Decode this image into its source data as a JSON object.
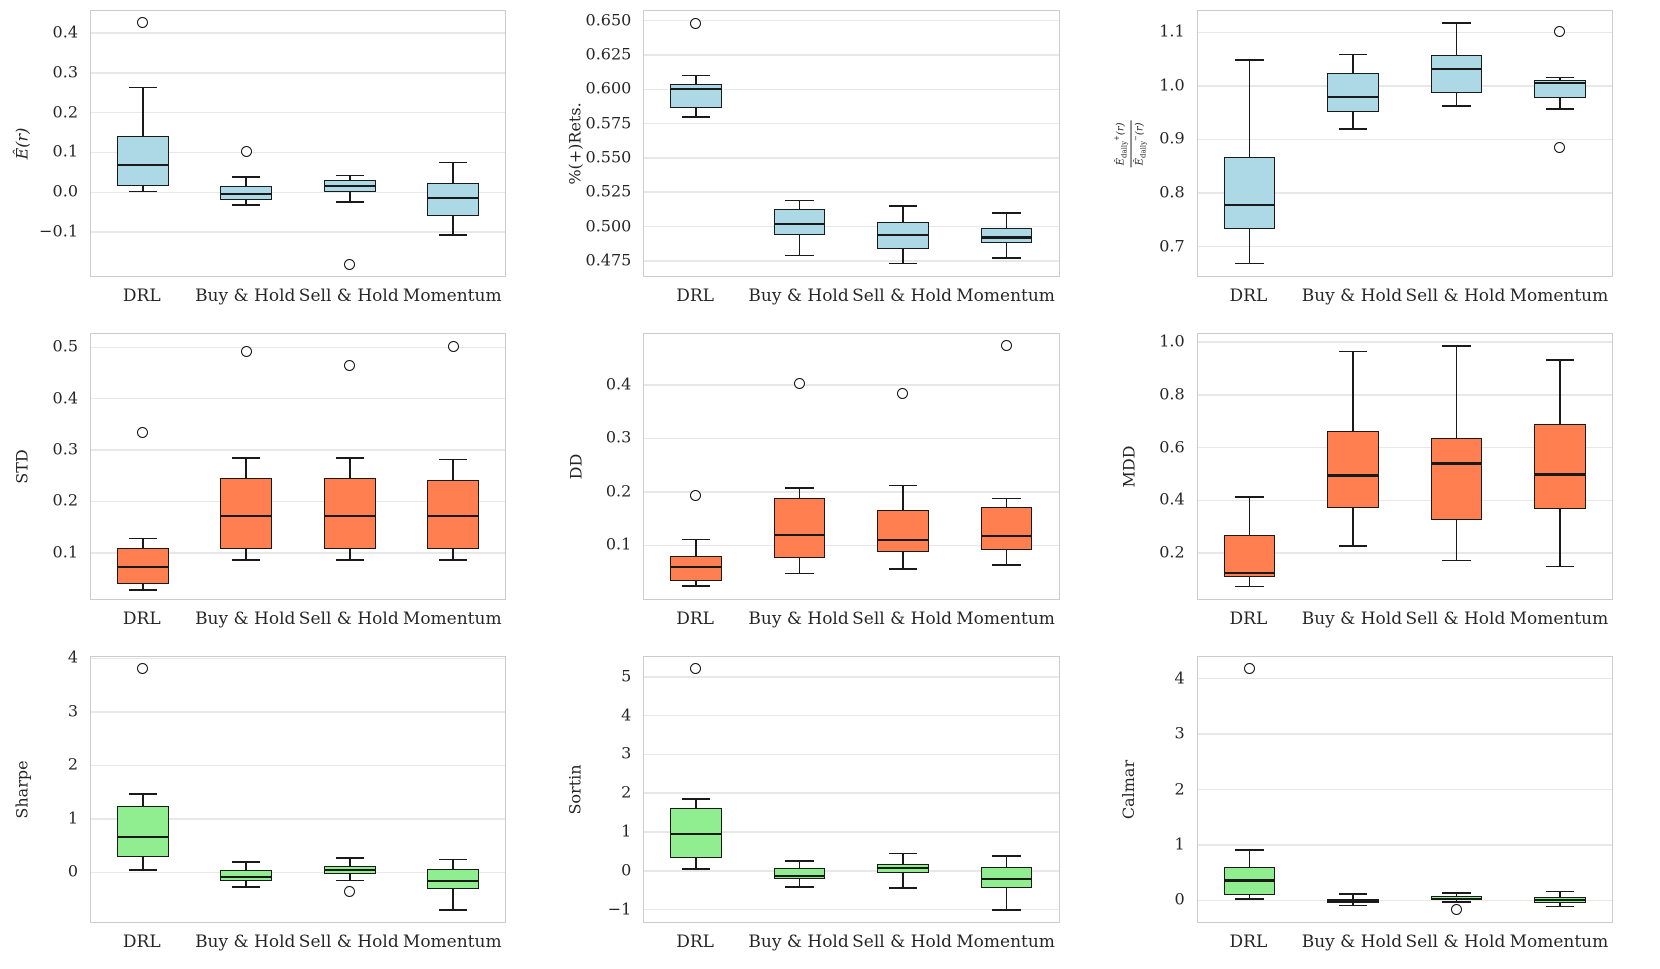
{
  "figure": {
    "background": "#ffffff",
    "grid_color": "#e8e8e8",
    "spine_color": "#cccccc",
    "box_edge_color": "#1a1a1a",
    "text_color": "#262626",
    "strategies": [
      "DRL",
      "Buy & Hold",
      "Sell & Hold",
      "Momentum"
    ]
  },
  "chart_data": [
    {
      "type": "box",
      "ylabel": "Ê(r)",
      "ylabel_italic": true,
      "color": "#ADD8E6",
      "ylim": [
        -0.21,
        0.455
      ],
      "yticks": [
        {
          "v": -0.1,
          "label": "−0.1"
        },
        {
          "v": 0.0,
          "label": "0.0"
        },
        {
          "v": 0.1,
          "label": "0.1"
        },
        {
          "v": 0.2,
          "label": "0.2"
        },
        {
          "v": 0.3,
          "label": "0.3"
        },
        {
          "v": 0.4,
          "label": "0.4"
        }
      ],
      "categories": [
        "DRL",
        "Buy & Hold",
        "Sell & Hold",
        "Momentum"
      ],
      "boxes": [
        {
          "whislo": 0.002,
          "q1": 0.016,
          "med": 0.068,
          "q3": 0.141,
          "whishi": 0.263,
          "fliers": [
            0.425
          ]
        },
        {
          "whislo": -0.032,
          "q1": -0.02,
          "med": -0.004,
          "q3": 0.015,
          "whishi": 0.038,
          "fliers": [
            0.101
          ]
        },
        {
          "whislo": -0.024,
          "q1": 0.0,
          "med": 0.016,
          "q3": 0.03,
          "whishi": 0.042,
          "fliers": [
            -0.182
          ]
        },
        {
          "whislo": -0.107,
          "q1": -0.06,
          "med": -0.015,
          "q3": 0.023,
          "whishi": 0.075,
          "fliers": []
        }
      ]
    },
    {
      "type": "box",
      "ylabel": "%(+)Rets.",
      "color": "#ADD8E6",
      "ylim": [
        0.464,
        0.657
      ],
      "yticks": [
        {
          "v": 0.475,
          "label": "0.475"
        },
        {
          "v": 0.5,
          "label": "0.500"
        },
        {
          "v": 0.525,
          "label": "0.525"
        },
        {
          "v": 0.55,
          "label": "0.550"
        },
        {
          "v": 0.575,
          "label": "0.575"
        },
        {
          "v": 0.6,
          "label": "0.600"
        },
        {
          "v": 0.625,
          "label": "0.625"
        },
        {
          "v": 0.65,
          "label": "0.650"
        }
      ],
      "categories": [
        "DRL",
        "Buy & Hold",
        "Sell & Hold",
        "Momentum"
      ],
      "boxes": [
        {
          "whislo": 0.58,
          "q1": 0.586,
          "med": 0.6,
          "q3": 0.604,
          "whishi": 0.61,
          "fliers": [
            0.648
          ]
        },
        {
          "whislo": 0.479,
          "q1": 0.494,
          "med": 0.502,
          "q3": 0.513,
          "whishi": 0.519,
          "fliers": []
        },
        {
          "whislo": 0.473,
          "q1": 0.484,
          "med": 0.494,
          "q3": 0.503,
          "whishi": 0.515,
          "fliers": []
        },
        {
          "whislo": 0.477,
          "q1": 0.488,
          "med": 0.492,
          "q3": 0.499,
          "whishi": 0.51,
          "fliers": []
        }
      ]
    },
    {
      "type": "box",
      "ylabel": "Ê_daily+(r) / Ê_daily−(r)",
      "color": "#ADD8E6",
      "ylabel_fraction": {
        "num": {
          "base": "Ê",
          "sub": "daily",
          "sup": "+",
          "arg": "(r)"
        },
        "den": {
          "base": "Ê",
          "sub": "daily",
          "sup": "−",
          "arg": "(r)"
        }
      },
      "ylim": [
        0.645,
        1.14
      ],
      "yticks": [
        {
          "v": 0.7,
          "label": "0.7"
        },
        {
          "v": 0.8,
          "label": "0.8"
        },
        {
          "v": 0.9,
          "label": "0.9"
        },
        {
          "v": 1.0,
          "label": "1.0"
        },
        {
          "v": 1.1,
          "label": "1.1"
        }
      ],
      "categories": [
        "DRL",
        "Buy & Hold",
        "Sell & Hold",
        "Momentum"
      ],
      "boxes": [
        {
          "whislo": 0.668,
          "q1": 0.732,
          "med": 0.778,
          "q3": 0.868,
          "whishi": 1.048,
          "fliers": []
        },
        {
          "whislo": 0.92,
          "q1": 0.952,
          "med": 0.979,
          "q3": 1.024,
          "whishi": 1.059,
          "fliers": []
        },
        {
          "whislo": 0.962,
          "q1": 0.986,
          "med": 1.032,
          "q3": 1.058,
          "whishi": 1.118,
          "fliers": []
        },
        {
          "whislo": 0.957,
          "q1": 0.978,
          "med": 1.005,
          "q3": 1.011,
          "whishi": 1.016,
          "fliers": [
            1.101,
            0.884
          ]
        }
      ]
    },
    {
      "type": "box",
      "ylabel": "STD",
      "color": "#FF7F50",
      "ylim": [
        0.01,
        0.526
      ],
      "yticks": [
        {
          "v": 0.1,
          "label": "0.1"
        },
        {
          "v": 0.2,
          "label": "0.2"
        },
        {
          "v": 0.3,
          "label": "0.3"
        },
        {
          "v": 0.4,
          "label": "0.4"
        },
        {
          "v": 0.5,
          "label": "0.5"
        }
      ],
      "categories": [
        "DRL",
        "Buy & Hold",
        "Sell & Hold",
        "Momentum"
      ],
      "boxes": [
        {
          "whislo": 0.027,
          "q1": 0.04,
          "med": 0.073,
          "q3": 0.109,
          "whishi": 0.128,
          "fliers": [
            0.334
          ]
        },
        {
          "whislo": 0.086,
          "q1": 0.107,
          "med": 0.171,
          "q3": 0.245,
          "whishi": 0.285,
          "fliers": [
            0.492
          ]
        },
        {
          "whislo": 0.086,
          "q1": 0.108,
          "med": 0.171,
          "q3": 0.246,
          "whishi": 0.284,
          "fliers": [
            0.465
          ]
        },
        {
          "whislo": 0.086,
          "q1": 0.107,
          "med": 0.171,
          "q3": 0.242,
          "whishi": 0.282,
          "fliers": [
            0.502
          ]
        }
      ]
    },
    {
      "type": "box",
      "ylabel": "DD",
      "color": "#FF7F50",
      "ylim": [
        0.0,
        0.495
      ],
      "yticks": [
        {
          "v": 0.1,
          "label": "0.1"
        },
        {
          "v": 0.2,
          "label": "0.2"
        },
        {
          "v": 0.3,
          "label": "0.3"
        },
        {
          "v": 0.4,
          "label": "0.4"
        }
      ],
      "categories": [
        "DRL",
        "Buy & Hold",
        "Sell & Hold",
        "Momentum"
      ],
      "boxes": [
        {
          "whislo": 0.024,
          "q1": 0.034,
          "med": 0.06,
          "q3": 0.08,
          "whishi": 0.111,
          "fliers": [
            0.193
          ]
        },
        {
          "whislo": 0.048,
          "q1": 0.076,
          "med": 0.12,
          "q3": 0.189,
          "whishi": 0.207,
          "fliers": [
            0.402
          ]
        },
        {
          "whislo": 0.056,
          "q1": 0.088,
          "med": 0.11,
          "q3": 0.166,
          "whishi": 0.212,
          "fliers": [
            0.383
          ]
        },
        {
          "whislo": 0.063,
          "q1": 0.092,
          "med": 0.117,
          "q3": 0.172,
          "whishi": 0.188,
          "fliers": [
            0.474
          ]
        }
      ]
    },
    {
      "type": "box",
      "ylabel": "MDD",
      "color": "#FF7F50",
      "ylim": [
        0.026,
        1.031
      ],
      "yticks": [
        {
          "v": 0.2,
          "label": "0.2"
        },
        {
          "v": 0.4,
          "label": "0.4"
        },
        {
          "v": 0.6,
          "label": "0.6"
        },
        {
          "v": 0.8,
          "label": "0.8"
        },
        {
          "v": 1.0,
          "label": "1.0"
        }
      ],
      "categories": [
        "DRL",
        "Buy & Hold",
        "Sell & Hold",
        "Momentum"
      ],
      "boxes": [
        {
          "whislo": 0.073,
          "q1": 0.11,
          "med": 0.125,
          "q3": 0.27,
          "whishi": 0.413,
          "fliers": []
        },
        {
          "whislo": 0.228,
          "q1": 0.371,
          "med": 0.494,
          "q3": 0.662,
          "whishi": 0.965,
          "fliers": []
        },
        {
          "whislo": 0.172,
          "q1": 0.325,
          "med": 0.54,
          "q3": 0.635,
          "whishi": 0.985,
          "fliers": []
        },
        {
          "whislo": 0.15,
          "q1": 0.368,
          "med": 0.498,
          "q3": 0.69,
          "whishi": 0.932,
          "fliers": []
        }
      ]
    },
    {
      "type": "box",
      "ylabel": "Sharpe",
      "color": "#90EE90",
      "ylim": [
        -0.925,
        4.025
      ],
      "yticks": [
        {
          "v": 0,
          "label": "0"
        },
        {
          "v": 1,
          "label": "1"
        },
        {
          "v": 2,
          "label": "2"
        },
        {
          "v": 3,
          "label": "3"
        },
        {
          "v": 4,
          "label": "4"
        }
      ],
      "categories": [
        "DRL",
        "Buy & Hold",
        "Sell & Hold",
        "Momentum"
      ],
      "boxes": [
        {
          "whislo": 0.05,
          "q1": 0.29,
          "med": 0.66,
          "q3": 1.24,
          "whishi": 1.47,
          "fliers": [
            3.81
          ]
        },
        {
          "whislo": -0.27,
          "q1": -0.15,
          "med": -0.09,
          "q3": 0.05,
          "whishi": 0.2,
          "fliers": []
        },
        {
          "whislo": -0.15,
          "q1": -0.02,
          "med": 0.05,
          "q3": 0.12,
          "whishi": 0.27,
          "fliers": [
            -0.35
          ]
        },
        {
          "whislo": -0.7,
          "q1": -0.31,
          "med": -0.16,
          "q3": 0.07,
          "whishi": 0.24,
          "fliers": []
        }
      ]
    },
    {
      "type": "box",
      "ylabel": "Sortin",
      "color": "#90EE90",
      "ylim": [
        -1.32,
        5.51
      ],
      "yticks": [
        {
          "v": -1,
          "label": "−1"
        },
        {
          "v": 0,
          "label": "0"
        },
        {
          "v": 1,
          "label": "1"
        },
        {
          "v": 2,
          "label": "2"
        },
        {
          "v": 3,
          "label": "3"
        },
        {
          "v": 4,
          "label": "4"
        },
        {
          "v": 5,
          "label": "5"
        }
      ],
      "categories": [
        "DRL",
        "Buy & Hold",
        "Sell & Hold",
        "Momentum"
      ],
      "boxes": [
        {
          "whislo": 0.05,
          "q1": 0.32,
          "med": 0.94,
          "q3": 1.63,
          "whishi": 1.85,
          "fliers": [
            5.22
          ]
        },
        {
          "whislo": -0.42,
          "q1": -0.22,
          "med": -0.13,
          "q3": 0.08,
          "whishi": 0.25,
          "fliers": []
        },
        {
          "whislo": -0.44,
          "q1": -0.05,
          "med": 0.07,
          "q3": 0.18,
          "whishi": 0.45,
          "fliers": []
        },
        {
          "whislo": -1.01,
          "q1": -0.45,
          "med": -0.22,
          "q3": 0.09,
          "whishi": 0.38,
          "fliers": []
        }
      ]
    },
    {
      "type": "box",
      "ylabel": "Calmar",
      "color": "#90EE90",
      "ylim": [
        -0.39,
        4.39
      ],
      "yticks": [
        {
          "v": 0,
          "label": "0"
        },
        {
          "v": 1,
          "label": "1"
        },
        {
          "v": 2,
          "label": "2"
        },
        {
          "v": 3,
          "label": "3"
        },
        {
          "v": 4,
          "label": "4"
        }
      ],
      "categories": [
        "DRL",
        "Buy & Hold",
        "Sell & Hold",
        "Momentum"
      ],
      "boxes": [
        {
          "whislo": 0.02,
          "q1": 0.1,
          "med": 0.36,
          "q3": 0.6,
          "whishi": 0.91,
          "fliers": [
            4.18
          ]
        },
        {
          "whislo": -0.09,
          "q1": -0.05,
          "med": -0.02,
          "q3": 0.03,
          "whishi": 0.11,
          "fliers": []
        },
        {
          "whislo": -0.03,
          "q1": 0.0,
          "med": 0.03,
          "q3": 0.07,
          "whishi": 0.13,
          "fliers": [
            -0.17
          ]
        },
        {
          "whislo": -0.11,
          "q1": -0.05,
          "med": 0.0,
          "q3": 0.06,
          "whishi": 0.16,
          "fliers": []
        }
      ]
    }
  ]
}
